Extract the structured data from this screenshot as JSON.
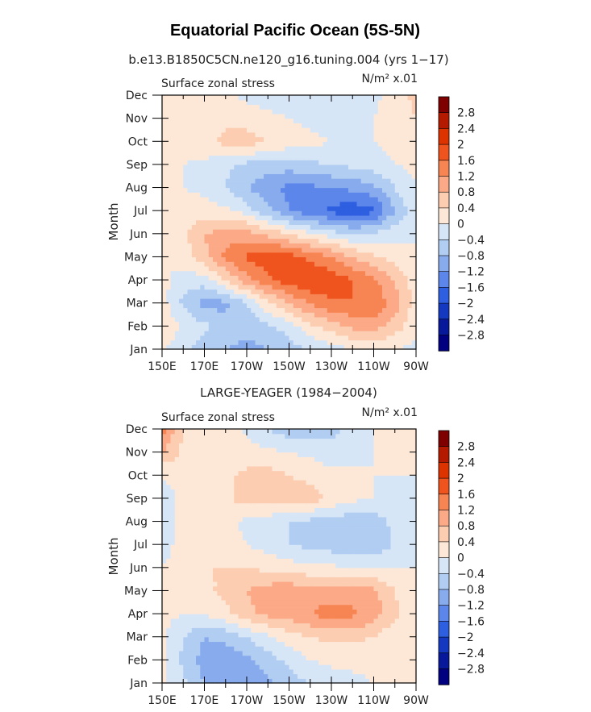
{
  "title": "Equatorial Pacific Ocean (5S-5N)",
  "panels": [
    {
      "header": "b.e13.B1850C5CN.ne120_g16.tuning.004 (yrs 1−17)",
      "left_label": "Surface zonal stress",
      "units_label": "N/m² x.01"
    },
    {
      "header": "LARGE-YEAGER (1984−2004)",
      "left_label": "Surface zonal stress",
      "units_label": "N/m² x.01"
    }
  ],
  "colorbar": {
    "labels": [
      "2.8",
      "2.4",
      "2",
      "1.6",
      "1.2",
      "0.8",
      "0.4",
      "0",
      "−0.4",
      "−0.8",
      "−1.2",
      "−1.6",
      "−2",
      "−2.4",
      "−2.8"
    ],
    "colors": [
      "#7f0000",
      "#b31a00",
      "#dd3300",
      "#f0541e",
      "#f78554",
      "#fba987",
      "#fdcdb2",
      "#fde8d8",
      "#d7e6f7",
      "#b1cdf2",
      "#88abee",
      "#5c86ea",
      "#2e5fe0",
      "#1438c0",
      "#08189a",
      "#000080"
    ]
  },
  "chart_data": [
    {
      "type": "heatmap",
      "title": "Equatorial Pacific Ocean (5S-5N)",
      "subtitle": "b.e13.B1850C5CN.ne120_g16.tuning.004 (yrs 1−17)",
      "variable": "Surface zonal stress",
      "units": "N/m² x.01",
      "xlabel": "",
      "ylabel": "Month",
      "x_ticks": [
        "150E",
        "170E",
        "170W",
        "150W",
        "130W",
        "110W",
        "90W"
      ],
      "x_values_deg_east": [
        150,
        160,
        170,
        180,
        190,
        200,
        210,
        220,
        230,
        240,
        250,
        260,
        270
      ],
      "y_ticks": [
        "Jan",
        "Feb",
        "Mar",
        "Apr",
        "May",
        "Jun",
        "Jul",
        "Aug",
        "Sep",
        "Oct",
        "Nov",
        "Dec"
      ],
      "contour_levels": [
        -2.8,
        -2.4,
        -2,
        -1.6,
        -1.2,
        -0.8,
        -0.4,
        0,
        0.4,
        0.8,
        1.2,
        1.6,
        2,
        2.4,
        2.8
      ],
      "values_by_month": [
        [
          0.1,
          -0.3,
          -0.6,
          -0.8,
          -0.9,
          -0.8,
          -0.6,
          -0.4,
          -0.2,
          0,
          0.1,
          0,
          -0.1
        ],
        [
          0.2,
          0,
          -0.3,
          -0.6,
          -0.7,
          -0.5,
          -0.2,
          0.3,
          0.6,
          0.9,
          1.0,
          0.6,
          0.1
        ],
        [
          0.2,
          -0.5,
          -1.0,
          -0.9,
          -0.4,
          0.3,
          0.8,
          1.2,
          1.5,
          1.6,
          1.5,
          1.0,
          0.2
        ],
        [
          0.1,
          -0.2,
          -0.2,
          0.4,
          1.0,
          1.5,
          1.8,
          2.0,
          1.9,
          1.6,
          1.3,
          0.8,
          0.2
        ],
        [
          0,
          0.2,
          0.7,
          1.3,
          1.7,
          1.9,
          1.8,
          1.5,
          1.2,
          0.8,
          0.5,
          0.2,
          0
        ],
        [
          0,
          0.3,
          0.8,
          1.0,
          1.0,
          0.7,
          0.4,
          0.1,
          -0.2,
          -0.4,
          -0.3,
          -0.1,
          0
        ],
        [
          0,
          0.1,
          0.2,
          0.1,
          -0.2,
          -0.7,
          -1.2,
          -1.5,
          -1.7,
          -1.9,
          -1.7,
          -0.8,
          -0.1
        ],
        [
          0,
          0,
          -0.1,
          -0.4,
          -0.8,
          -1.1,
          -1.3,
          -1.3,
          -1.2,
          -1.1,
          -0.9,
          -0.4,
          0
        ],
        [
          0.1,
          0,
          -0.1,
          -0.3,
          -0.5,
          -0.6,
          -0.6,
          -0.5,
          -0.4,
          -0.3,
          -0.2,
          0,
          0.1
        ],
        [
          0.2,
          0.2,
          0.3,
          0.5,
          0.6,
          0.4,
          0.2,
          0.1,
          0,
          0,
          0,
          0.1,
          0.2
        ],
        [
          0.1,
          0.2,
          0.3,
          0.3,
          0.2,
          0.1,
          0,
          -0.1,
          -0.2,
          -0.1,
          0,
          0.2,
          0.4
        ],
        [
          0,
          0.1,
          0.2,
          0.1,
          -0.1,
          -0.2,
          -0.2,
          -0.3,
          -0.3,
          -0.2,
          -0.1,
          0.2,
          0.5
        ]
      ]
    },
    {
      "type": "heatmap",
      "title": "Equatorial Pacific Ocean (5S-5N)",
      "subtitle": "LARGE-YEAGER (1984−2004)",
      "variable": "Surface zonal stress",
      "units": "N/m² x.01",
      "xlabel": "",
      "ylabel": "Month",
      "x_ticks": [
        "150E",
        "170E",
        "170W",
        "150W",
        "130W",
        "110W",
        "90W"
      ],
      "x_values_deg_east": [
        150,
        160,
        170,
        180,
        190,
        200,
        210,
        220,
        230,
        240,
        250,
        260,
        270
      ],
      "y_ticks": [
        "Jan",
        "Feb",
        "Mar",
        "Apr",
        "May",
        "Jun",
        "Jul",
        "Aug",
        "Sep",
        "Oct",
        "Nov",
        "Dec"
      ],
      "contour_levels": [
        -2.8,
        -2.4,
        -2,
        -1.6,
        -1.2,
        -0.8,
        -0.4,
        0,
        0.4,
        0.8,
        1.2,
        1.6,
        2,
        2.4,
        2.8
      ],
      "values_by_month": [
        [
          0.1,
          -0.3,
          -0.8,
          -1.0,
          -1.1,
          -0.9,
          -0.6,
          -0.4,
          -0.2,
          -0.1,
          0,
          0,
          0
        ],
        [
          0.1,
          -0.5,
          -1.0,
          -1.1,
          -0.9,
          -0.6,
          -0.3,
          0,
          0.1,
          0.1,
          0.1,
          0,
          0
        ],
        [
          0.1,
          -0.4,
          -0.8,
          -0.7,
          -0.4,
          -0.1,
          0.2,
          0.4,
          0.5,
          0.5,
          0.4,
          0.1,
          0
        ],
        [
          0.1,
          0,
          0,
          0.3,
          0.7,
          0.9,
          1.0,
          1.2,
          1.4,
          1.3,
          1.0,
          0.5,
          0.1
        ],
        [
          0.1,
          0.2,
          0.3,
          0.5,
          0.8,
          1.0,
          1.1,
          1.0,
          1.0,
          1.0,
          0.9,
          0.4,
          0
        ],
        [
          0,
          0.3,
          0.4,
          0.4,
          0.4,
          0.3,
          0.2,
          0.1,
          0.1,
          0,
          0,
          0,
          0
        ],
        [
          -0.3,
          0.3,
          0.4,
          0.2,
          0,
          -0.2,
          -0.4,
          -0.5,
          -0.6,
          -0.8,
          -0.8,
          -0.3,
          0
        ],
        [
          -0.4,
          0.2,
          0.3,
          0.1,
          -0.1,
          -0.2,
          -0.4,
          -0.5,
          -0.6,
          -0.7,
          -0.6,
          -0.3,
          0
        ],
        [
          -0.2,
          0.1,
          0.2,
          0.3,
          0.6,
          0.6,
          0.5,
          0.6,
          0.3,
          0.1,
          0,
          -0.1,
          0
        ],
        [
          0,
          0.2,
          0.3,
          0.3,
          0.5,
          0.6,
          0.4,
          0.3,
          0.2,
          0.1,
          0,
          0,
          0
        ],
        [
          0.8,
          0.3,
          0.3,
          0.2,
          0.2,
          0.1,
          0,
          -0.1,
          -0.3,
          -0.2,
          0,
          0,
          0
        ],
        [
          1.4,
          0.4,
          0.3,
          0.2,
          -0.1,
          -0.4,
          -0.6,
          -0.7,
          -0.5,
          -0.3,
          0,
          0,
          0
        ]
      ]
    }
  ]
}
